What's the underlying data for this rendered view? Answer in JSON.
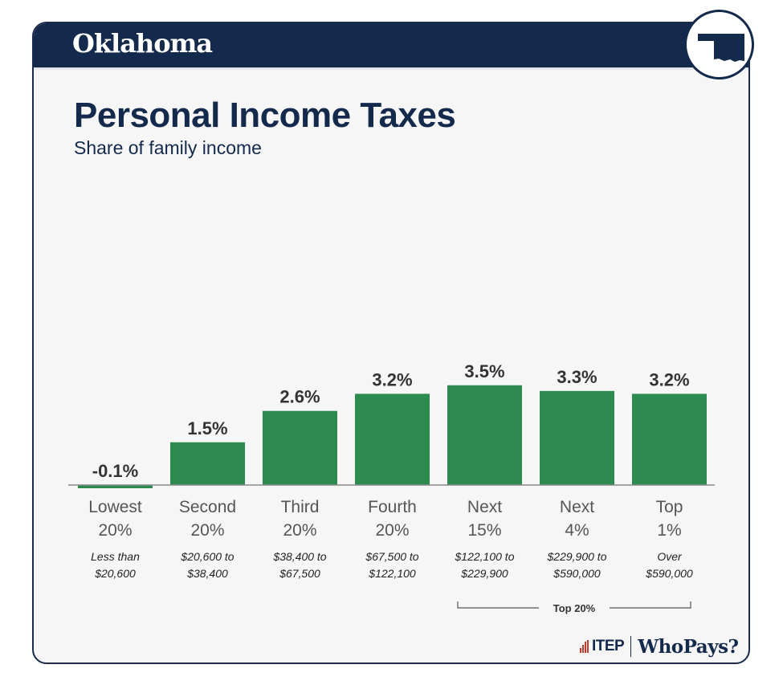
{
  "header": {
    "state": "Oklahoma",
    "badge_icon": "oklahoma-state-shape-icon"
  },
  "title": "Personal Income Taxes",
  "subtitle": "Share of family income",
  "colors": {
    "bar": "#2e8b4f",
    "navy": "#142a4c",
    "background": "#f6f6f6"
  },
  "chart_data": {
    "type": "bar",
    "categories": [
      [
        "Lowest",
        "20%"
      ],
      [
        "Second",
        "20%"
      ],
      [
        "Third",
        "20%"
      ],
      [
        "Fourth",
        "20%"
      ],
      [
        "Next",
        "15%"
      ],
      [
        "Next",
        "4%"
      ],
      [
        "Top",
        "1%"
      ]
    ],
    "income_ranges": [
      [
        "Less than",
        "$20,600"
      ],
      [
        "$20,600 to",
        "$38,400"
      ],
      [
        "$38,400 to",
        "$67,500"
      ],
      [
        "$67,500 to",
        "$122,100"
      ],
      [
        "$122,100 to",
        "$229,900"
      ],
      [
        "$229,900 to",
        "$590,000"
      ],
      [
        "Over",
        "$590,000"
      ]
    ],
    "values": [
      -0.1,
      1.5,
      2.6,
      3.2,
      3.5,
      3.3,
      3.2
    ],
    "value_labels": [
      "-0.1%",
      "1.5%",
      "2.6%",
      "3.2%",
      "3.5%",
      "3.3%",
      "3.2%"
    ],
    "unit": "%",
    "ylim": [
      -0.1,
      3.5
    ],
    "grid": false,
    "bracket": {
      "label": "Top 20%",
      "from_index": 4,
      "to_index": 6
    }
  },
  "footer": {
    "logo_itep": "ITEP",
    "logo_whopays": "WhoPays?"
  }
}
